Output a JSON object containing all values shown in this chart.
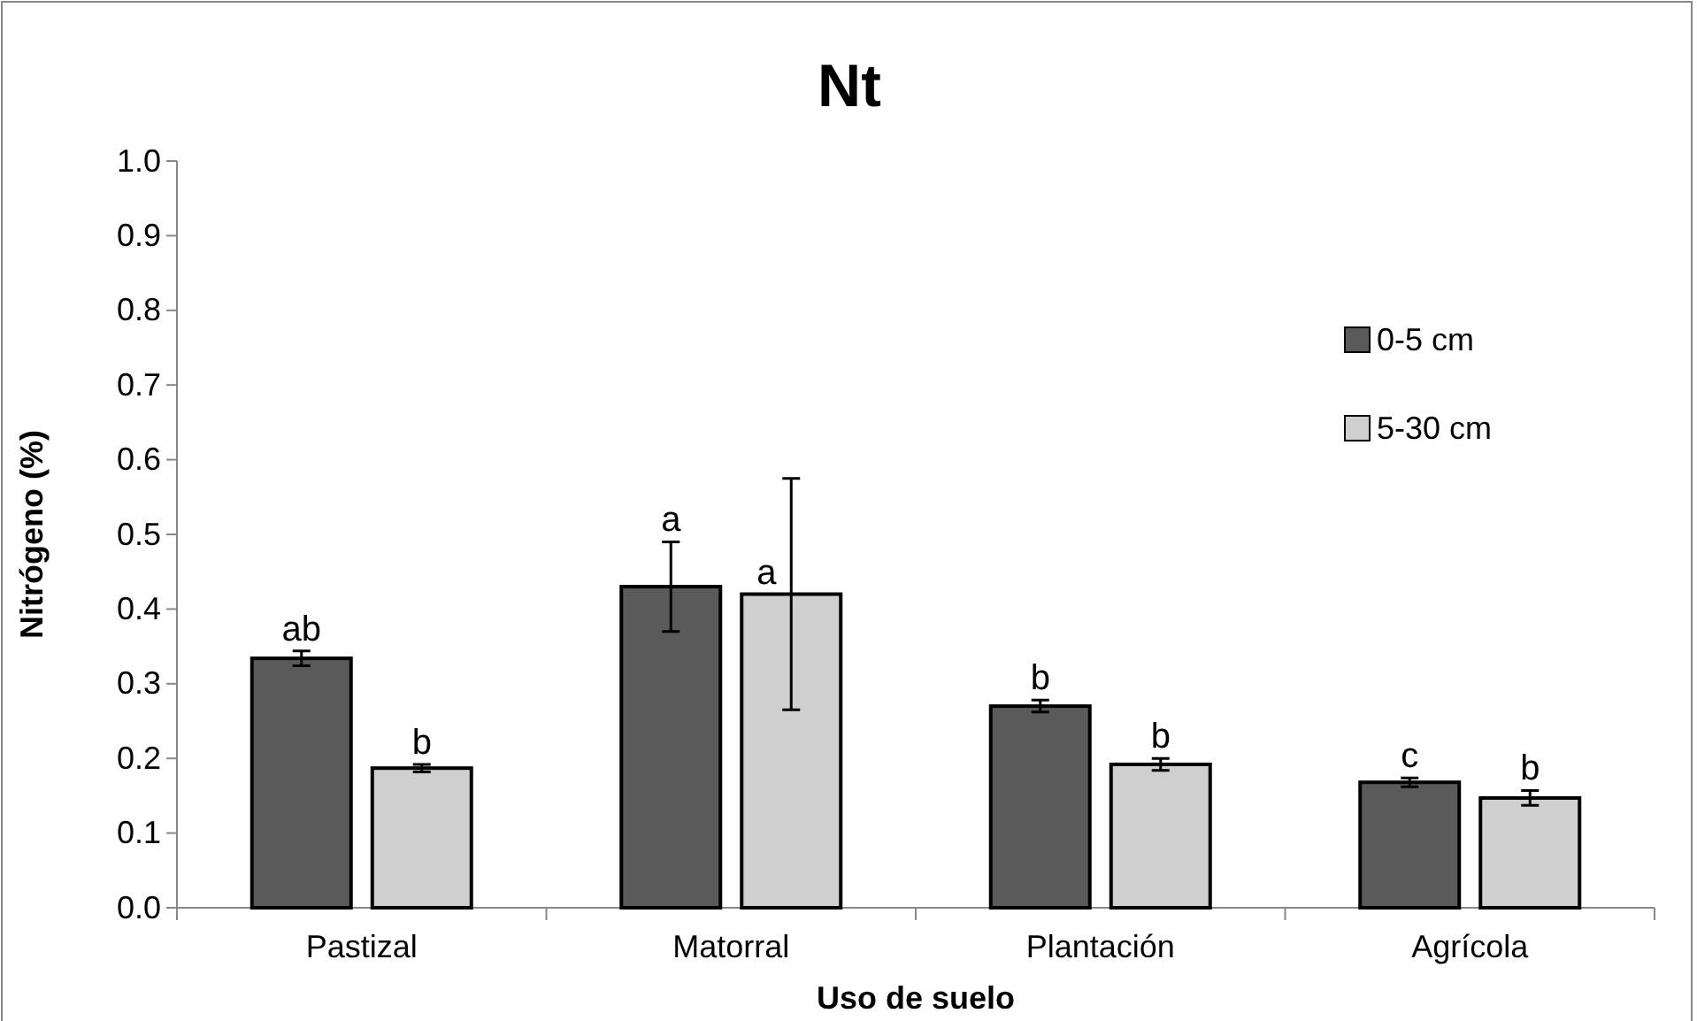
{
  "chart_data": {
    "type": "bar",
    "title": "Nt",
    "xlabel": "Uso de suelo",
    "ylabel": "Nitrógeno (%)",
    "categories": [
      "Pastizal",
      "Matorral",
      "Plantación",
      "Agrícola"
    ],
    "series": [
      {
        "name": "0-5 cm",
        "color": "#5a5a5a",
        "values": [
          0.334,
          0.43,
          0.27,
          0.168
        ],
        "errors": [
          0.01,
          0.06,
          0.008,
          0.006
        ],
        "value_labels": [
          "ab",
          "a",
          "b",
          "c"
        ]
      },
      {
        "name": "5-30 cm",
        "color": "#cfcfcf",
        "values": [
          0.187,
          0.42,
          0.192,
          0.147
        ],
        "errors": [
          0.005,
          0.155,
          0.008,
          0.01
        ],
        "value_labels": [
          "b",
          "a",
          "b",
          "b"
        ]
      }
    ],
    "ylim": [
      0,
      1
    ],
    "yticks": [
      {
        "value": 0,
        "label": "0.0"
      },
      {
        "value": 0.1,
        "label": "0.1"
      },
      {
        "value": 0.2,
        "label": "0.2"
      },
      {
        "value": 0.3,
        "label": "0.3"
      },
      {
        "value": 0.4,
        "label": "0.4"
      },
      {
        "value": 0.5,
        "label": "0.5"
      },
      {
        "value": 0.6,
        "label": "0.6"
      },
      {
        "value": 0.7,
        "label": "0.7"
      },
      {
        "value": 0.8,
        "label": "0.8"
      },
      {
        "value": 0.9,
        "label": "0.9"
      },
      {
        "value": 1,
        "label": "1.0"
      }
    ],
    "grid": false,
    "legend": "right"
  }
}
